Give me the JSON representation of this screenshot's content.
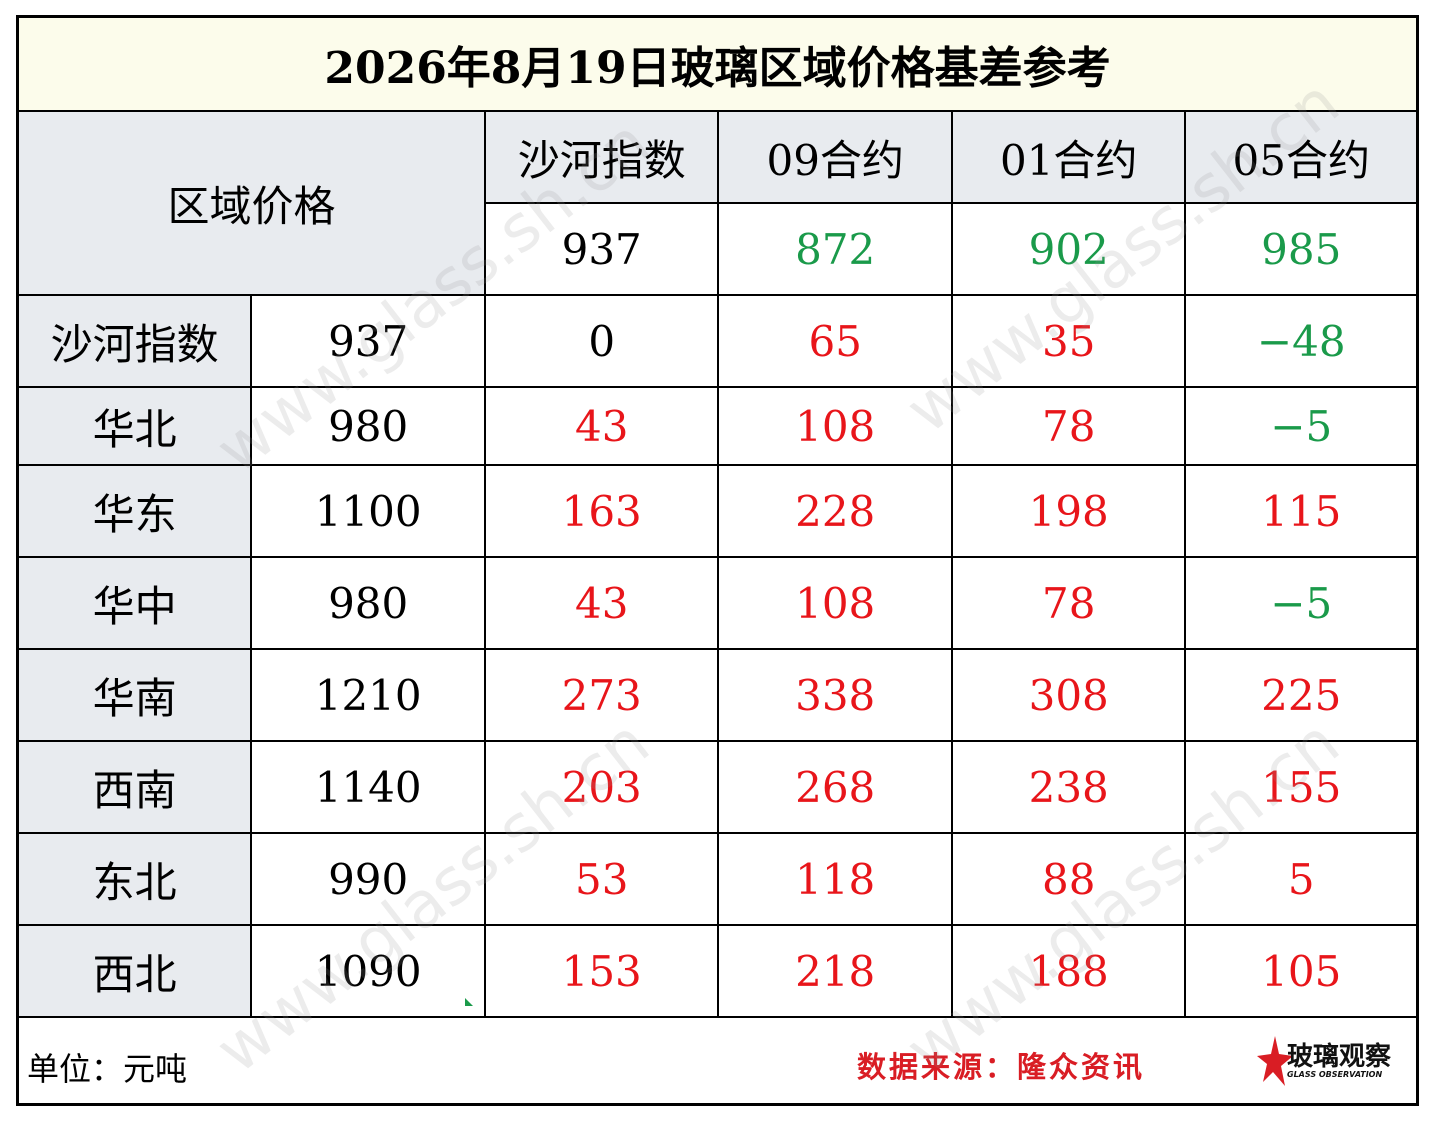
{
  "title": "2026年8月19日玻璃区域价格基差参考",
  "header": {
    "region_label": "区域价格",
    "columns": [
      "沙河指数",
      "09合约",
      "01合约",
      "05合约"
    ],
    "base_values": [
      "937",
      "872",
      "902",
      "985"
    ]
  },
  "rows": [
    {
      "region": "沙河指数",
      "price": "937",
      "diffs": [
        "0",
        "65",
        "35",
        "-48"
      ]
    },
    {
      "region": "华北",
      "price": "980",
      "diffs": [
        "43",
        "108",
        "78",
        "-5"
      ]
    },
    {
      "region": "华东",
      "price": "1100",
      "diffs": [
        "163",
        "228",
        "198",
        "115"
      ]
    },
    {
      "region": "华中",
      "price": "980",
      "diffs": [
        "43",
        "108",
        "78",
        "-5"
      ]
    },
    {
      "region": "华南",
      "price": "1210",
      "diffs": [
        "273",
        "338",
        "308",
        "225"
      ]
    },
    {
      "region": "西南",
      "price": "1140",
      "diffs": [
        "203",
        "268",
        "238",
        "155"
      ]
    },
    {
      "region": "东北",
      "price": "990",
      "diffs": [
        "53",
        "118",
        "88",
        "5"
      ]
    },
    {
      "region": "西北",
      "price": "1090",
      "diffs": [
        "153",
        "218",
        "188",
        "105"
      ]
    }
  ],
  "footer": {
    "unit": "单位：元吨",
    "source": "数据来源：隆众资讯",
    "logo_text": "玻璃观察",
    "logo_sub": "GLASS OBSERVATION"
  },
  "watermark": "www.glass.sh.cn",
  "colors": {
    "positive": "#e8151a",
    "negative": "#1a9a4a",
    "header_bg": "#e8ebef",
    "title_bg": "#fcfceb"
  }
}
